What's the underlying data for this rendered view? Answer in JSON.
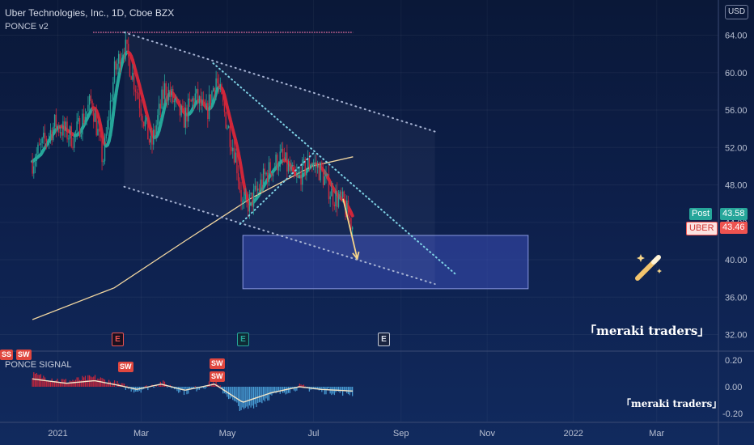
{
  "header": {
    "title": "Uber Technologies, Inc., 1D, Cboe BZX",
    "indicator": "PONCE v2",
    "signal_indicator": "PONCE SIGNAL"
  },
  "currency": "USD",
  "price_labels": {
    "post_name": "Post",
    "post_value": "43.58",
    "symbol": "UBER",
    "symbol_value": "43.46"
  },
  "earnings_badge": "E",
  "sw_badge": "SW",
  "sw_partial": "SS",
  "watermark": "「meraki traders」",
  "watermark_small": "「meraki traders」",
  "colors": {
    "bg": "#0d1f4a",
    "bear": "#d0263a",
    "bull": "#26a69a",
    "teal": "#26a69a",
    "ma": "#f1d6a0",
    "channel": "#a8b4d4",
    "wedge": "#7fd3e6",
    "zone": "#3a4fb8",
    "arrow": "#f6d58a",
    "post": "#26a69a",
    "symbol": "#ef5350"
  },
  "chart_data": [
    {
      "type": "candlestick",
      "title": "Uber Technologies, Inc., 1D, Cboe BZX",
      "x_tick_labels": [
        "2021",
        "Mar",
        "May",
        "Jul",
        "Sep",
        "Nov",
        "2022",
        "Mar"
      ],
      "y_tick_labels": [
        "64.00",
        "60.00",
        "56.00",
        "52.00",
        "48.00",
        "44.00",
        "40.00",
        "36.00",
        "32.00"
      ],
      "ylim": [
        30.5,
        66.5
      ],
      "last_price": 43.46,
      "post_market_price": 43.58,
      "price_path_keypoints": [
        {
          "date": "2020-12-14",
          "close": 50.5
        },
        {
          "date": "2020-12-30",
          "close": 54.5
        },
        {
          "date": "2021-01-12",
          "close": 53.0
        },
        {
          "date": "2021-01-25",
          "close": 57.0
        },
        {
          "date": "2021-02-02",
          "close": 50.5
        },
        {
          "date": "2021-02-10",
          "close": 60.0
        },
        {
          "date": "2021-02-17",
          "close": 63.0
        },
        {
          "date": "2021-02-26",
          "close": 58.0
        },
        {
          "date": "2021-03-08",
          "close": 52.0
        },
        {
          "date": "2021-03-18",
          "close": 58.5
        },
        {
          "date": "2021-03-31",
          "close": 55.0
        },
        {
          "date": "2021-04-08",
          "close": 57.5
        },
        {
          "date": "2021-04-16",
          "close": 55.5
        },
        {
          "date": "2021-04-23",
          "close": 59.5
        },
        {
          "date": "2021-04-30",
          "close": 55.0
        },
        {
          "date": "2021-05-07",
          "close": 51.0
        },
        {
          "date": "2021-05-12",
          "close": 45.5
        },
        {
          "date": "2021-05-19",
          "close": 46.5
        },
        {
          "date": "2021-05-28",
          "close": 49.0
        },
        {
          "date": "2021-06-08",
          "close": 51.0
        },
        {
          "date": "2021-06-18",
          "close": 48.5
        },
        {
          "date": "2021-06-29",
          "close": 50.5
        },
        {
          "date": "2021-07-06",
          "close": 49.5
        },
        {
          "date": "2021-07-14",
          "close": 47.0
        },
        {
          "date": "2021-07-22",
          "close": 46.0
        },
        {
          "date": "2021-07-29",
          "close": 43.5
        }
      ],
      "overlays": {
        "moving_average_200": [
          {
            "date": "2020-12-14",
            "value": 33.6
          },
          {
            "date": "2021-02-10",
            "value": 37.0
          },
          {
            "date": "2021-04-01",
            "value": 42.0
          },
          {
            "date": "2021-05-17",
            "value": 46.5
          },
          {
            "date": "2021-06-30",
            "value": 50.0
          },
          {
            "date": "2021-07-29",
            "value": 51.0
          }
        ],
        "descending_channel_upper": [
          {
            "date": "2021-02-17",
            "value": 64.3
          },
          {
            "date": "2021-09-25",
            "value": 53.7
          }
        ],
        "descending_channel_lower": [
          {
            "date": "2021-02-17",
            "value": 47.8
          },
          {
            "date": "2021-09-25",
            "value": 37.4
          }
        ],
        "wedge_upper": [
          {
            "date": "2021-04-21",
            "value": 61.0
          },
          {
            "date": "2021-10-10",
            "value": 38.4
          }
        ],
        "wedge_lower": [
          {
            "date": "2021-05-10",
            "value": 43.8
          },
          {
            "date": "2021-07-01",
            "value": 51.4
          }
        ],
        "target_zone": {
          "start": "2021-05-12",
          "end": "2021-11-30",
          "top": 42.6,
          "bottom": 36.9
        },
        "projection_arrow": [
          {
            "date": "2021-07-22",
            "value": 46.5
          },
          {
            "date": "2021-08-01",
            "value": 40.1
          }
        ]
      },
      "earnings_markers": [
        "2021-02-10",
        "2021-05-05",
        "2021-08-04"
      ]
    },
    {
      "type": "histogram",
      "title": "PONCE SIGNAL",
      "y_tick_labels": [
        "0.20",
        "0.00",
        "-0.20"
      ],
      "ylim": [
        -0.25,
        0.25
      ],
      "keypoints": [
        {
          "date": "2020-12-14",
          "value": 0.09
        },
        {
          "date": "2021-01-07",
          "value": 0.04
        },
        {
          "date": "2021-01-27",
          "value": 0.07
        },
        {
          "date": "2021-02-12",
          "value": 0.02
        },
        {
          "date": "2021-02-26",
          "value": -0.03
        },
        {
          "date": "2021-03-15",
          "value": 0.03
        },
        {
          "date": "2021-04-01",
          "value": -0.04
        },
        {
          "date": "2021-04-22",
          "value": 0.03
        },
        {
          "date": "2021-05-12",
          "value": -0.18
        },
        {
          "date": "2021-06-01",
          "value": -0.07
        },
        {
          "date": "2021-06-21",
          "value": 0.0
        },
        {
          "date": "2021-07-06",
          "value": -0.03
        },
        {
          "date": "2021-07-29",
          "value": -0.05
        }
      ],
      "sw_markers": [
        "2021-02-12",
        "2021-04-22"
      ]
    }
  ]
}
